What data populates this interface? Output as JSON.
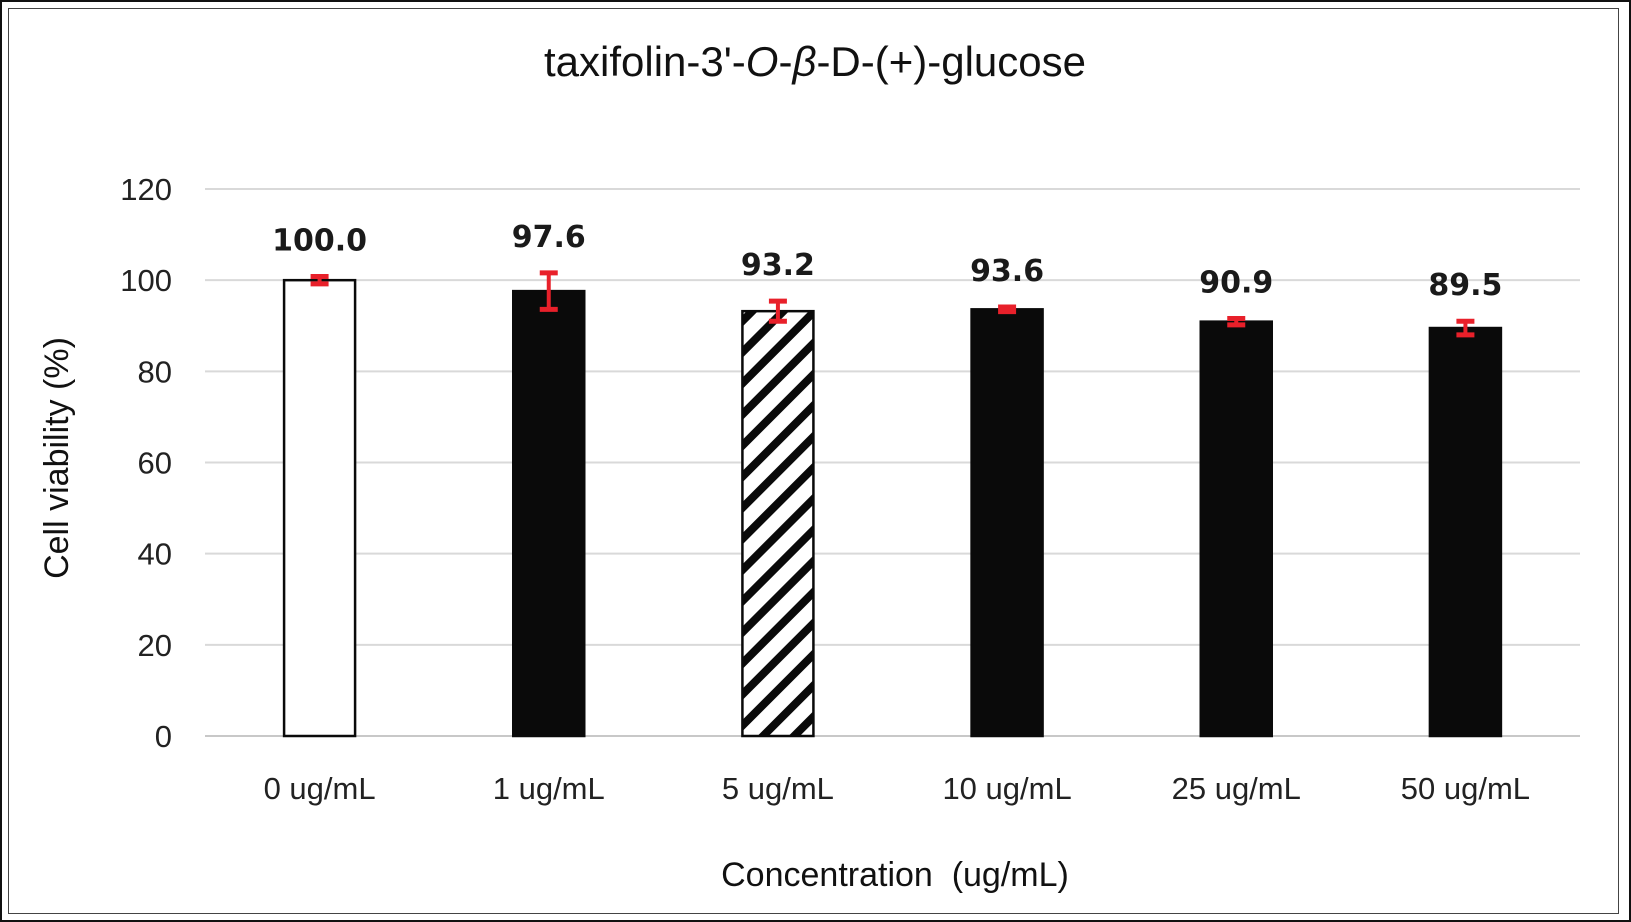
{
  "chart_data": {
    "type": "bar",
    "title": {
      "part1": "taxifolin-3'-",
      "part2": "O",
      "part3": "-",
      "part4": "β",
      "part5": "-D-(+)-glucose"
    },
    "xlabel": "Concentration  (ug/mL)",
    "ylabel": "Cell viability (%)",
    "ylim": [
      0,
      120
    ],
    "yticks": [
      "0",
      "20",
      "40",
      "60",
      "80",
      "100",
      "120"
    ],
    "grid": true,
    "categories": [
      "0 ug/mL",
      "1 ug/mL",
      "5 ug/mL",
      "10 ug/mL",
      "25 ug/mL",
      "50 ug/mL"
    ],
    "values": [
      100.0,
      97.6,
      93.2,
      93.6,
      90.9,
      89.5
    ],
    "value_labels": [
      "100.0",
      "97.6",
      "93.2",
      "93.6",
      "90.9",
      "89.5"
    ],
    "error": [
      0.8,
      4.0,
      2.2,
      0.5,
      0.7,
      1.5
    ],
    "fills": [
      "white",
      "black",
      "hatched",
      "black",
      "black",
      "black"
    ],
    "colors": {
      "bar": "#0a0a0a",
      "control": "#ffffff",
      "error_bar": "#e8202a",
      "grid": "#d9d9d9"
    }
  }
}
